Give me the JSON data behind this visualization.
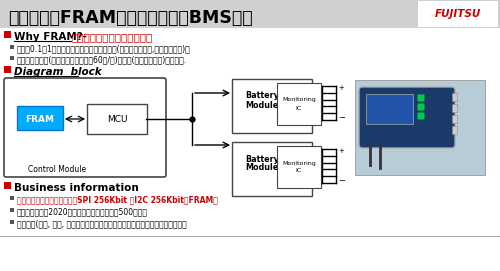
{
  "title": "应用举例：FRAM在电池管理系统BMS应用",
  "section1_header_black": "Why FRAM?-",
  "section1_header_red": "高烧写耐久性，高速写入操作",
  "bullet1": "系统每0.1或1秒，实时和连续地存储重要数据(电池单元的电压,电流和温度等)。",
  "bullet2": "系统要监控短期(最后几个充电周期，60次/秒)和长期(整个电池寿命)电池性能.",
  "section2_header": "Diagram  block",
  "section3_header": "Business information",
  "biz1": "中国的一些客户已经开始使用SPI 256Kbit 和I2C 256Kbit的FRAM。",
  "biz2": "中国政府计划在2020年以前普及新能源汽车到500万辆。",
  "biz3": "主要国家(法国, 印度, 挪威和丹麦陆续发表减少燃油汽车，大力发展新能源汽车。",
  "fram_color": "#00aaff",
  "red_color": "#cc0000",
  "black": "#000000",
  "white": "#ffffff",
  "gray_mid": "#888888",
  "gray_dark": "#444444",
  "gray_bullet": "#555555",
  "title_bg": "#d0d0d0",
  "prod_bg": "#b8ccd8",
  "dev_color": "#1a3a6a",
  "dev_edge": "#aaaaaa",
  "green": "#00cc44"
}
